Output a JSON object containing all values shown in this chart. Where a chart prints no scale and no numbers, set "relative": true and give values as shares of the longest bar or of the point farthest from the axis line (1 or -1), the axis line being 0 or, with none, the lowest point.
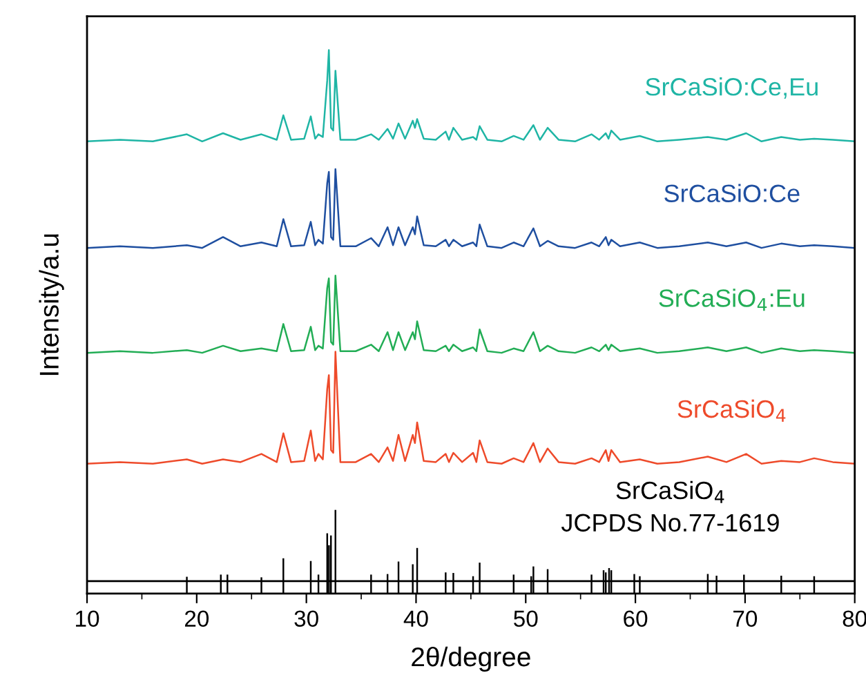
{
  "chart_data": {
    "type": "line",
    "relative": true,
    "xlabel": "2θ/degree",
    "ylabel": "Intensity/a.u",
    "xlim": [
      10,
      80
    ],
    "xticks": [
      10,
      20,
      30,
      40,
      50,
      60,
      70,
      80
    ],
    "grid": false,
    "legend": false,
    "marker": "none",
    "line_style": "solid",
    "ref_lines": [
      {
        "axis": "y",
        "value": 0.023,
        "color": "#000000"
      }
    ],
    "series": [
      {
        "name": "SrCaSiO:Ce,Eu",
        "color": "#1fb5a5",
        "x": [
          10,
          13,
          16,
          19.1,
          20.5,
          22.4,
          24,
          25.9,
          27.3,
          27.9,
          28.6,
          29.8,
          30.4,
          30.8,
          31.1,
          31.5,
          31.9,
          32.05,
          32.25,
          32.45,
          32.65,
          33.1,
          34.5,
          35.9,
          36.6,
          37.4,
          37.9,
          38.4,
          39.0,
          39.7,
          39.9,
          40.1,
          40.7,
          41.8,
          42.7,
          43.0,
          43.4,
          44.2,
          45.2,
          45.5,
          45.8,
          46.5,
          47.8,
          48.9,
          49.8,
          50.7,
          51.3,
          52.0,
          53.0,
          54.5,
          56.0,
          56.7,
          57.3,
          57.55,
          57.8,
          58.6,
          60.4,
          62,
          64,
          66.6,
          68.3,
          70.1,
          71.5,
          73.3,
          75,
          76.3,
          78,
          80
        ],
        "values": [
          0.832,
          0.835,
          0.832,
          0.845,
          0.832,
          0.847,
          0.835,
          0.845,
          0.835,
          0.88,
          0.835,
          0.837,
          0.878,
          0.837,
          0.845,
          0.84,
          0.944,
          1.0,
          0.857,
          0.852,
          0.962,
          0.835,
          0.835,
          0.845,
          0.835,
          0.855,
          0.837,
          0.865,
          0.837,
          0.87,
          0.857,
          0.873,
          0.837,
          0.835,
          0.85,
          0.835,
          0.857,
          0.835,
          0.84,
          0.835,
          0.86,
          0.835,
          0.832,
          0.842,
          0.835,
          0.862,
          0.835,
          0.857,
          0.835,
          0.832,
          0.845,
          0.835,
          0.847,
          0.837,
          0.852,
          0.835,
          0.842,
          0.832,
          0.835,
          0.84,
          0.835,
          0.847,
          0.832,
          0.84,
          0.835,
          0.837,
          0.835,
          0.832
        ]
      },
      {
        "name": "SrCaSiO:Ce",
        "color": "#1f4fa0",
        "x": [
          10,
          13,
          16,
          19.1,
          20.5,
          22.4,
          24,
          25.9,
          27.3,
          27.9,
          28.6,
          29.8,
          30.4,
          30.8,
          31.1,
          31.5,
          31.9,
          32.05,
          32.25,
          32.45,
          32.65,
          33.1,
          34.5,
          35.9,
          36.6,
          37.4,
          37.9,
          38.4,
          39.0,
          39.7,
          39.9,
          40.1,
          40.7,
          41.8,
          42.7,
          43.0,
          43.4,
          44.2,
          45.2,
          45.5,
          45.8,
          46.5,
          47.8,
          48.9,
          49.8,
          50.7,
          51.3,
          52.0,
          53.0,
          54.5,
          56.0,
          56.7,
          57.3,
          57.55,
          57.8,
          58.6,
          60.4,
          62,
          64,
          66.6,
          68.3,
          70.1,
          71.5,
          73.3,
          75,
          76.3,
          78,
          80
        ],
        "values": [
          0.636,
          0.639,
          0.636,
          0.641,
          0.636,
          0.656,
          0.639,
          0.646,
          0.639,
          0.689,
          0.639,
          0.641,
          0.684,
          0.641,
          0.651,
          0.644,
          0.755,
          0.776,
          0.656,
          0.651,
          0.781,
          0.639,
          0.639,
          0.654,
          0.639,
          0.674,
          0.641,
          0.674,
          0.641,
          0.674,
          0.661,
          0.694,
          0.641,
          0.639,
          0.651,
          0.639,
          0.651,
          0.639,
          0.646,
          0.639,
          0.679,
          0.639,
          0.636,
          0.646,
          0.639,
          0.672,
          0.639,
          0.649,
          0.639,
          0.636,
          0.646,
          0.639,
          0.656,
          0.641,
          0.651,
          0.639,
          0.646,
          0.636,
          0.639,
          0.646,
          0.639,
          0.646,
          0.636,
          0.644,
          0.639,
          0.641,
          0.639,
          0.636
        ]
      },
      {
        "name": "SrCaSiO$_{4}$:Eu",
        "color": "#22ad55",
        "x": [
          10,
          13,
          16,
          19.1,
          20.5,
          22.4,
          24,
          25.9,
          27.3,
          27.9,
          28.6,
          29.8,
          30.4,
          30.8,
          31.1,
          31.5,
          31.9,
          32.05,
          32.25,
          32.45,
          32.65,
          33.1,
          34.5,
          35.9,
          36.6,
          37.4,
          37.9,
          38.4,
          39.0,
          39.7,
          39.9,
          40.1,
          40.7,
          41.8,
          42.7,
          43.0,
          43.4,
          44.2,
          45.2,
          45.5,
          45.8,
          46.5,
          47.8,
          48.9,
          49.8,
          50.7,
          51.3,
          52.0,
          53.0,
          54.5,
          56.0,
          56.7,
          57.3,
          57.55,
          57.8,
          58.6,
          60.4,
          62,
          64,
          66.6,
          68.3,
          70.1,
          71.5,
          73.3,
          75,
          76.3,
          78,
          80
        ],
        "values": [
          0.443,
          0.446,
          0.443,
          0.448,
          0.443,
          0.456,
          0.446,
          0.451,
          0.446,
          0.496,
          0.446,
          0.448,
          0.491,
          0.448,
          0.456,
          0.451,
          0.562,
          0.58,
          0.463,
          0.458,
          0.585,
          0.446,
          0.446,
          0.458,
          0.446,
          0.481,
          0.448,
          0.481,
          0.448,
          0.481,
          0.468,
          0.501,
          0.448,
          0.446,
          0.456,
          0.446,
          0.458,
          0.446,
          0.453,
          0.446,
          0.486,
          0.446,
          0.443,
          0.451,
          0.446,
          0.481,
          0.446,
          0.456,
          0.446,
          0.443,
          0.453,
          0.446,
          0.458,
          0.448,
          0.458,
          0.446,
          0.451,
          0.443,
          0.446,
          0.453,
          0.446,
          0.453,
          0.443,
          0.451,
          0.446,
          0.448,
          0.446,
          0.443
        ]
      },
      {
        "name": "SrCaSiO$_{4}$",
        "color": "#ee4a2a",
        "x": [
          10,
          13,
          16,
          19.1,
          20.5,
          22.4,
          24,
          25.9,
          27.3,
          27.9,
          28.6,
          29.8,
          30.4,
          30.8,
          31.1,
          31.5,
          31.9,
          32.05,
          32.25,
          32.45,
          32.65,
          33.1,
          34.5,
          35.9,
          36.6,
          37.4,
          37.9,
          38.4,
          39.0,
          39.7,
          39.9,
          40.1,
          40.7,
          41.8,
          42.7,
          43.0,
          43.4,
          44.2,
          45.2,
          45.5,
          45.8,
          46.5,
          47.8,
          48.9,
          49.8,
          50.7,
          51.3,
          52.0,
          53.0,
          54.5,
          56.0,
          56.7,
          57.3,
          57.55,
          57.8,
          58.6,
          60.4,
          62,
          64,
          66.6,
          68.3,
          70.1,
          71.5,
          73.3,
          75,
          76.3,
          78,
          80
        ],
        "values": [
          0.239,
          0.242,
          0.239,
          0.247,
          0.239,
          0.247,
          0.242,
          0.257,
          0.242,
          0.295,
          0.242,
          0.244,
          0.3,
          0.244,
          0.257,
          0.247,
          0.376,
          0.402,
          0.264,
          0.259,
          0.445,
          0.242,
          0.242,
          0.257,
          0.242,
          0.269,
          0.244,
          0.292,
          0.244,
          0.292,
          0.277,
          0.315,
          0.244,
          0.242,
          0.257,
          0.242,
          0.259,
          0.242,
          0.259,
          0.242,
          0.282,
          0.242,
          0.239,
          0.249,
          0.242,
          0.277,
          0.242,
          0.267,
          0.242,
          0.239,
          0.249,
          0.242,
          0.264,
          0.244,
          0.264,
          0.242,
          0.247,
          0.239,
          0.242,
          0.252,
          0.242,
          0.257,
          0.239,
          0.244,
          0.242,
          0.249,
          0.242,
          0.239
        ]
      },
      {
        "name": "SrCaSiO$_{4}$\nJCPDS No.77-1619",
        "type": "bar",
        "color": "#000000",
        "x": [
          19.1,
          22.2,
          22.8,
          25.9,
          27.9,
          30.4,
          31.1,
          31.9,
          32.06,
          32.24,
          32.65,
          35.9,
          37.4,
          38.4,
          39.7,
          40.1,
          42.7,
          43.4,
          45.2,
          45.8,
          48.9,
          50.5,
          50.7,
          52.0,
          56.0,
          57.1,
          57.3,
          57.6,
          57.8,
          59.9,
          60.4,
          66.6,
          67.4,
          69.9,
          73.3,
          76.3
        ],
        "values": [
          0.031,
          0.035,
          0.035,
          0.03,
          0.065,
          0.06,
          0.035,
          0.111,
          0.089,
          0.107,
          0.154,
          0.035,
          0.036,
          0.059,
          0.054,
          0.084,
          0.039,
          0.038,
          0.032,
          0.057,
          0.035,
          0.032,
          0.05,
          0.045,
          0.035,
          0.043,
          0.039,
          0.047,
          0.043,
          0.036,
          0.032,
          0.036,
          0.033,
          0.035,
          0.033,
          0.032
        ]
      }
    ]
  }
}
